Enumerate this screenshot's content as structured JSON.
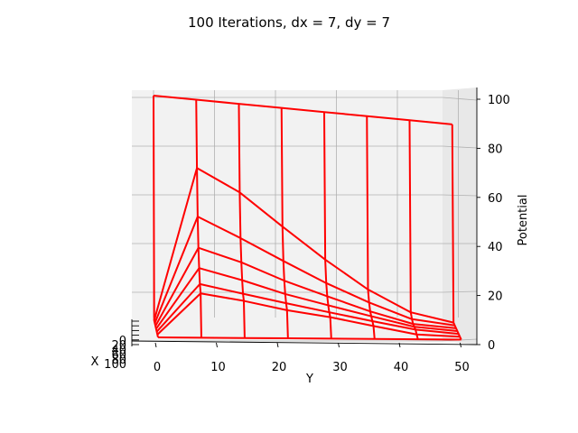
{
  "chart_data": {
    "type": "surface-wireframe",
    "title": "100 Iterations, dx = 7, dy = 7",
    "xlabel": "X",
    "ylabel": "Y",
    "zlabel": "Potential",
    "x_ticks": [
      "0",
      "20",
      "40",
      "60",
      "80",
      "100"
    ],
    "y_ticks": [
      "0",
      "10",
      "20",
      "30",
      "40",
      "50"
    ],
    "z_ticks": [
      "0",
      "20",
      "40",
      "60",
      "80",
      "100"
    ],
    "xlim": [
      0,
      100
    ],
    "ylim": [
      -3,
      53
    ],
    "zlim": [
      0,
      103
    ],
    "grid": true,
    "series": [
      {
        "x": [
          0,
          14.29,
          28.57,
          42.86,
          57.14,
          71.43,
          85.71,
          100
        ],
        "y": [
          0,
          7,
          14,
          21,
          28,
          35,
          42,
          49
        ],
        "z": [
          [
            100,
            0,
            0,
            0,
            0,
            0,
            0,
            0
          ],
          [
            100,
            70,
            49,
            36,
            28,
            22,
            19,
            0
          ],
          [
            100,
            60,
            40,
            30,
            23,
            18,
            16,
            0
          ],
          [
            100,
            45,
            30,
            22,
            17,
            14,
            12,
            0
          ],
          [
            100,
            30,
            20,
            15,
            12,
            10,
            9,
            0
          ],
          [
            100,
            16,
            11,
            8,
            7,
            6,
            5,
            0
          ],
          [
            100,
            5,
            3,
            2,
            2,
            2,
            1,
            0
          ],
          [
            100,
            0,
            0,
            0,
            0,
            0,
            0,
            0
          ]
        ]
      }
    ],
    "colors": {
      "wire": "#ff0000",
      "pane": "#f2f2f2",
      "grid": "#b0b0b0"
    }
  }
}
